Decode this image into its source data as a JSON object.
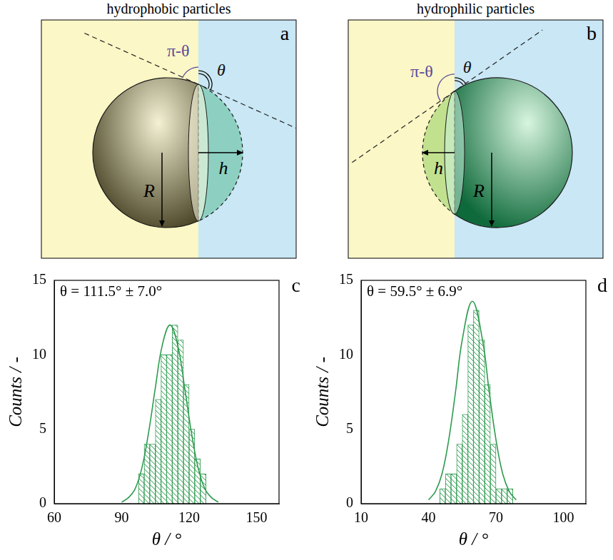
{
  "chart_data": [
    {
      "type": "histogram",
      "panel": "c",
      "annotation": "θ = 111.5° ± 7.0°",
      "xlabel": "θ / °",
      "ylabel": "Counts / -",
      "bins": [
        97.5,
        100,
        102.5,
        105,
        107.5,
        110,
        112.5,
        115,
        117.5,
        120,
        122.5,
        125,
        127.5
      ],
      "values": [
        2,
        4,
        4,
        7,
        10,
        10,
        12,
        11,
        8,
        5,
        3,
        2
      ],
      "fit": {
        "x": [
          90,
          93,
          96,
          99,
          102,
          105,
          108,
          111.5,
          115,
          118,
          121,
          124,
          127,
          130,
          133
        ],
        "y": [
          0.1,
          0.4,
          1.0,
          2.4,
          4.8,
          7.8,
          10.6,
          12.0,
          10.6,
          7.8,
          4.8,
          2.4,
          1.0,
          0.4,
          0.1
        ]
      },
      "color": "#2e9b4f",
      "xlim": [
        60,
        160
      ],
      "xticks": [
        60,
        90,
        120,
        150
      ],
      "ylim": [
        0,
        15
      ],
      "yticks": [
        0,
        5,
        10,
        15
      ],
      "grid": false
    },
    {
      "type": "histogram",
      "panel": "d",
      "annotation": "θ = 59.5° ± 6.9°",
      "xlabel": "θ / °",
      "ylabel": "Counts / -",
      "bins": [
        45,
        47.5,
        50,
        52.5,
        55,
        57.5,
        60,
        62.5,
        65,
        67.5,
        70,
        72.5,
        75,
        77.5
      ],
      "values": [
        1,
        2,
        2,
        4,
        6,
        12,
        13,
        11,
        8,
        4,
        1,
        1,
        1
      ],
      "fit": {
        "x": [
          40,
          43,
          46,
          49,
          52,
          55,
          59.5,
          64,
          67,
          70,
          73,
          76,
          79
        ],
        "y": [
          0.25,
          0.8,
          2.0,
          4.3,
          7.5,
          11.0,
          13.6,
          11.0,
          7.5,
          4.3,
          2.0,
          0.8,
          0.25
        ]
      },
      "color": "#2e9b4f",
      "xlim": [
        10,
        110
      ],
      "xticks": [
        10,
        40,
        70,
        100
      ],
      "ylim": [
        0,
        15
      ],
      "yticks": [
        0,
        5,
        10,
        15
      ],
      "grid": false
    }
  ],
  "diagrams": [
    {
      "panel": "a",
      "title": "hydrophobic particles",
      "outer_angle": "π-θ",
      "contact_angle": "θ",
      "radius": "R",
      "height": "h"
    },
    {
      "panel": "b",
      "title": "hydrophilic particles",
      "outer_angle": "π-θ",
      "contact_angle": "θ",
      "radius": "R",
      "height": "h"
    }
  ]
}
